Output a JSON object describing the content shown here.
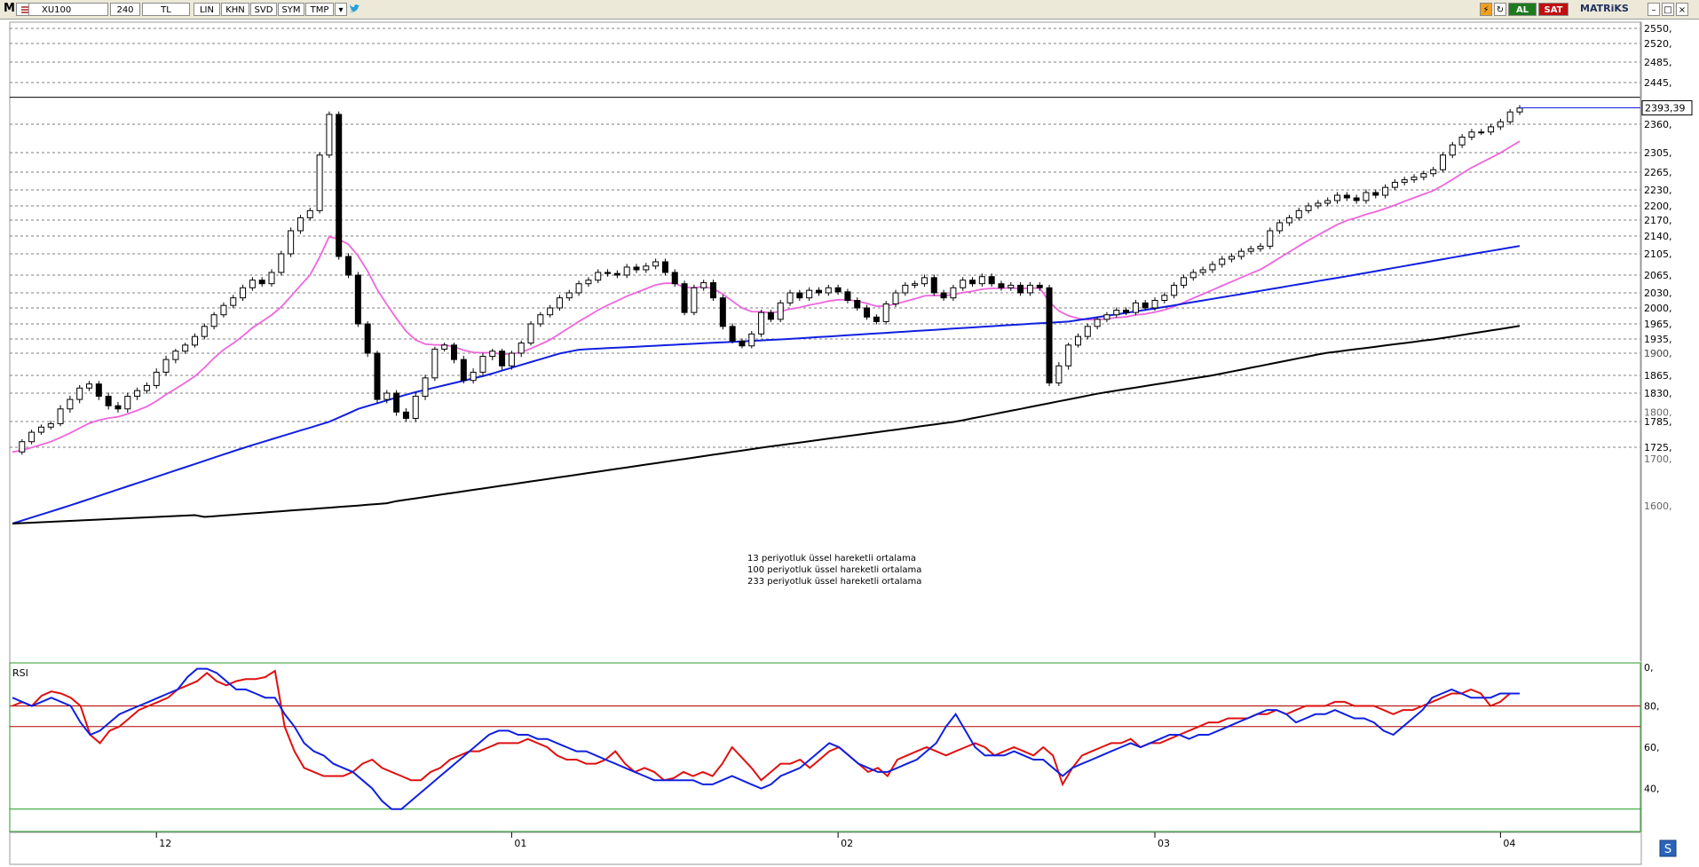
{
  "toolbar": {
    "logo": "M",
    "symbol": "XU100",
    "period": "240",
    "currency": "TL",
    "buttons": [
      "LIN",
      "KHN",
      "SVD",
      "SYM",
      "TMP"
    ],
    "al_label": "AL",
    "sat_label": "SAT",
    "brand": "MATRiKS"
  },
  "colors": {
    "ema13": "#ee66dd",
    "ema100": "#1020e0",
    "ema233": "#000000",
    "rsi_red": "#e01010",
    "rsi_blue": "#1020e0",
    "up_candle": "#ffffff",
    "down_candle": "#000000",
    "level_80": "#b00000",
    "level_70": "#b00000",
    "level_30": "#1a9a1a"
  },
  "legend": [
    "13 periyotluk üssel hareketli ortalama",
    "100 periyotluk üssel hareketli ortalama",
    "233 periyotluk üssel hareketli ortalama"
  ],
  "chart_data": {
    "type": "candlestick",
    "y_ticks": [
      2550,
      2520,
      2485,
      2445,
      2360,
      2305,
      2265,
      2230,
      2200,
      2170,
      2140,
      2105,
      2065,
      2030,
      2000,
      1965,
      1935,
      1900,
      1865,
      1830,
      1785,
      1725
    ],
    "y_ticks_faint": [
      1900,
      1800,
      1700,
      1600
    ],
    "y_tick_label_faint_1600": "1600,",
    "y_suffix": ",",
    "last_price_label": "2393,39",
    "last_price": 2393.39,
    "top_line_level": 2415,
    "x_labels": [
      {
        "label": "12",
        "index": 15
      },
      {
        "label": "01",
        "index": 52
      },
      {
        "label": "02",
        "index": 86
      },
      {
        "label": "03",
        "index": 119
      },
      {
        "label": "04",
        "index": 155
      }
    ],
    "closes": [
      1715,
      1738,
      1760,
      1772,
      1780,
      1805,
      1820,
      1840,
      1848,
      1825,
      1810,
      1805,
      1825,
      1835,
      1845,
      1870,
      1890,
      1905,
      1920,
      1940,
      1960,
      1985,
      2005,
      2020,
      2040,
      2055,
      2048,
      2070,
      2105,
      2150,
      2175,
      2190,
      2300,
      2380,
      2100,
      2065,
      1965,
      1900,
      1820,
      1830,
      1800,
      1790,
      1825,
      1860,
      1910,
      1920,
      1890,
      1855,
      1870,
      1895,
      1905,
      1880,
      1900,
      1925,
      1965,
      1985,
      2000,
      2020,
      2030,
      2048,
      2055,
      2070,
      2068,
      2065,
      2080,
      2075,
      2082,
      2090,
      2070,
      2048,
      1990,
      2040,
      2050,
      2020,
      1960,
      1930,
      1918,
      1945,
      1990,
      1975,
      2010,
      2030,
      2020,
      2035,
      2030,
      2040,
      2032,
      2015,
      2000,
      1980,
      1970,
      2008,
      2030,
      2045,
      2048,
      2060,
      2030,
      2020,
      2040,
      2055,
      2048,
      2062,
      2048,
      2040,
      2045,
      2030,
      2045,
      2040,
      1850,
      1880,
      1920,
      1940,
      1960,
      1975,
      1985,
      1995,
      1990,
      2010,
      2000,
      2015,
      2025,
      2045,
      2060,
      2070,
      2075,
      2085,
      2095,
      2100,
      2110,
      2115,
      2120,
      2150,
      2165,
      2175,
      2190,
      2200,
      2205,
      2210,
      2220,
      2215,
      2210,
      2225,
      2220,
      2235,
      2245,
      2250,
      2255,
      2262,
      2270,
      2300,
      2320,
      2335,
      2345,
      2345,
      2355,
      2365,
      2385,
      2393
    ]
  },
  "rsi": {
    "label": "RSI",
    "levels": [
      80,
      70,
      30
    ],
    "tick_labels": [
      "80,",
      "60,",
      "40,"
    ],
    "top_partial_label": "0,",
    "red": [
      80,
      82,
      80,
      85,
      87,
      86,
      84,
      80,
      66,
      62,
      68,
      70,
      74,
      78,
      80,
      82,
      84,
      88,
      90,
      92,
      96,
      92,
      90,
      92,
      93,
      93,
      94,
      97,
      70,
      58,
      50,
      48,
      46,
      46,
      46,
      48,
      52,
      54,
      50,
      48,
      46,
      44,
      44,
      48,
      50,
      54,
      56,
      58,
      58,
      60,
      62,
      62,
      62,
      64,
      62,
      60,
      56,
      54,
      54,
      52,
      52,
      54,
      58,
      52,
      48,
      50,
      48,
      44,
      45,
      48,
      46,
      48,
      46,
      52,
      60,
      55,
      50,
      44,
      48,
      52,
      52,
      54,
      50,
      54,
      58,
      60,
      56,
      52,
      48,
      50,
      46,
      54,
      56,
      58,
      60,
      58,
      56,
      58,
      60,
      62,
      60,
      56,
      58,
      60,
      58,
      56,
      60,
      56,
      42,
      50,
      56,
      58,
      60,
      62,
      62,
      64,
      60,
      62,
      62,
      64,
      66,
      68,
      70,
      72,
      72,
      74,
      74,
      74,
      76,
      76,
      78,
      76,
      78,
      80,
      80,
      80,
      82,
      82,
      80,
      80,
      80,
      78,
      76,
      78,
      78,
      80,
      82,
      84,
      86,
      86,
      88,
      86,
      80,
      82,
      86,
      86
    ],
    "blue": [
      84,
      82,
      80,
      82,
      84,
      82,
      80,
      72,
      66,
      68,
      72,
      76,
      78,
      80,
      82,
      84,
      86,
      88,
      94,
      98,
      98,
      96,
      92,
      88,
      88,
      86,
      84,
      84,
      76,
      70,
      62,
      58,
      56,
      52,
      50,
      48,
      44,
      40,
      34,
      30,
      30,
      34,
      38,
      42,
      46,
      50,
      54,
      58,
      62,
      66,
      68,
      68,
      66,
      66,
      64,
      64,
      62,
      60,
      58,
      58,
      56,
      54,
      52,
      50,
      48,
      46,
      44,
      44,
      44,
      44,
      44,
      42,
      42,
      44,
      46,
      44,
      42,
      40,
      42,
      46,
      48,
      50,
      54,
      58,
      62,
      60,
      56,
      52,
      50,
      48,
      48,
      50,
      52,
      54,
      58,
      62,
      70,
      76,
      68,
      60,
      56,
      56,
      56,
      58,
      56,
      54,
      54,
      50,
      46,
      50,
      52,
      54,
      56,
      58,
      60,
      62,
      60,
      62,
      64,
      66,
      66,
      64,
      66,
      66,
      68,
      70,
      72,
      74,
      76,
      78,
      78,
      76,
      72,
      74,
      76,
      76,
      78,
      76,
      74,
      74,
      72,
      68,
      66,
      70,
      74,
      78,
      84,
      86,
      88,
      86,
      84,
      84,
      84,
      86,
      86,
      86
    ]
  }
}
